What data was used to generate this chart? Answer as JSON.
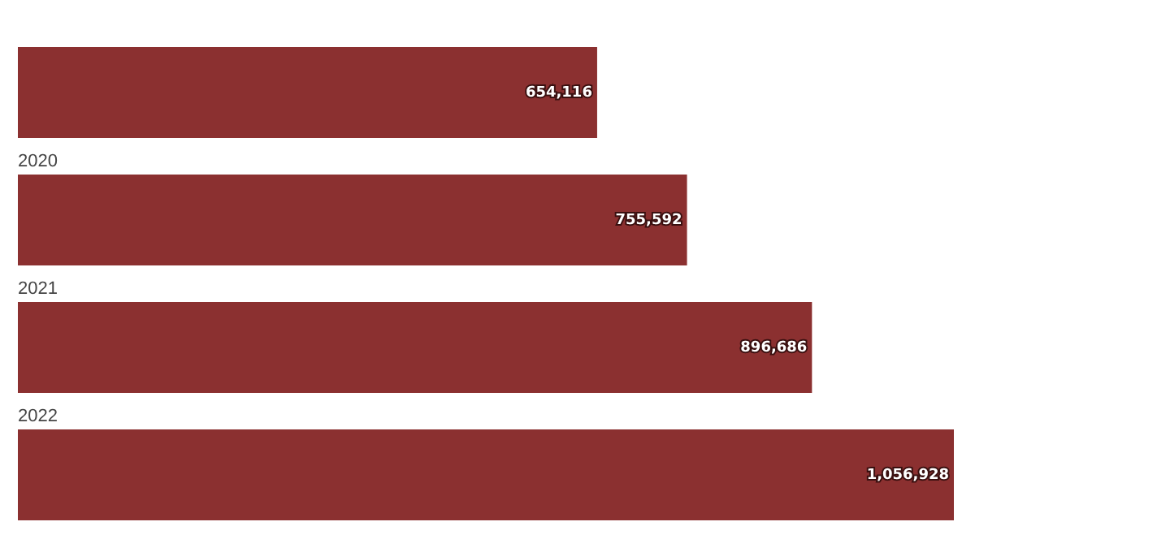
{
  "chart_data": {
    "type": "bar",
    "orientation": "horizontal",
    "categories": [
      null,
      "2020",
      "2021",
      "2022"
    ],
    "values": [
      654116,
      755592,
      896686,
      1056928
    ],
    "value_labels": [
      "654,116",
      "755,592",
      "896,686",
      "1,056,928"
    ],
    "color": "#8b3030",
    "grid": false,
    "legend": false
  }
}
